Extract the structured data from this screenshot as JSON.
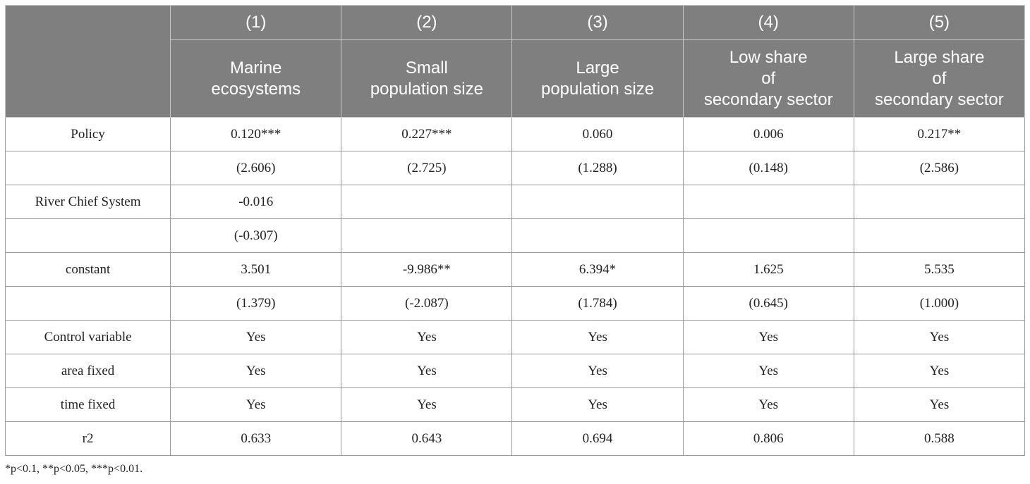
{
  "table": {
    "column_numbers": [
      "(1)",
      "(2)",
      "(3)",
      "(4)",
      "(5)"
    ],
    "column_labels": [
      "Marine\necosystems",
      "Small\npopulation size",
      "Large\npopulation size",
      "Low share\nof\nsecondary sector",
      "Large share\nof\nsecondary sector"
    ],
    "rows": [
      {
        "label": "Policy",
        "cells": [
          "0.120***",
          "0.227***",
          "0.060",
          "0.006",
          "0.217**"
        ]
      },
      {
        "label": "",
        "cells": [
          "(2.606)",
          "(2.725)",
          "(1.288)",
          "(0.148)",
          "(2.586)"
        ]
      },
      {
        "label": "River Chief System",
        "cells": [
          "-0.016",
          "",
          "",
          "",
          ""
        ]
      },
      {
        "label": "",
        "cells": [
          "(-0.307)",
          "",
          "",
          "",
          ""
        ]
      },
      {
        "label": "constant",
        "cells": [
          "3.501",
          "-9.986**",
          "6.394*",
          "1.625",
          "5.535"
        ]
      },
      {
        "label": "",
        "cells": [
          "(1.379)",
          "(-2.087)",
          "(1.784)",
          "(0.645)",
          "(1.000)"
        ]
      },
      {
        "label": "Control variable",
        "cells": [
          "Yes",
          "Yes",
          "Yes",
          "Yes",
          "Yes"
        ]
      },
      {
        "label": "area fixed",
        "cells": [
          "Yes",
          "Yes",
          "Yes",
          "Yes",
          "Yes"
        ]
      },
      {
        "label": "time fixed",
        "cells": [
          "Yes",
          "Yes",
          "Yes",
          "Yes",
          "Yes"
        ]
      },
      {
        "label": "r2",
        "cells": [
          "0.633",
          "0.643",
          "0.694",
          "0.806",
          "0.588"
        ]
      }
    ]
  },
  "footnote": "*p<0.1, **p<0.05, ***p<0.01."
}
